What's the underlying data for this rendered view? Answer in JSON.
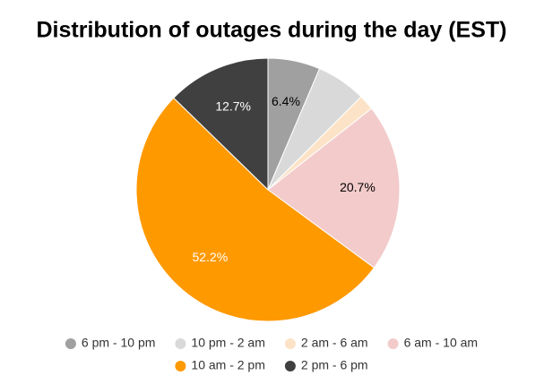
{
  "chart_data": {
    "type": "pie",
    "title": "Distribution of outages during the day (EST)",
    "categories": [
      "6 pm - 10 pm",
      "10 pm - 2 am",
      "2 am - 6 am",
      "6 am - 10 am",
      "10 am - 2 pm",
      "2 pm - 6 pm"
    ],
    "values": [
      6.4,
      6.1,
      1.9,
      20.7,
      52.2,
      12.7
    ],
    "value_labels": [
      "6.4%",
      null,
      null,
      "20.7%",
      "52.2%",
      "12.7%"
    ],
    "colors": [
      "#a0a0a0",
      "#d9d9d9",
      "#fce3c7",
      "#f3cbcb",
      "#ff9900",
      "#404040"
    ],
    "label_colors": [
      "#000000",
      "#000000",
      "#000000",
      "#000000",
      "#ffffff",
      "#ffffff"
    ],
    "legend": "bottom"
  }
}
